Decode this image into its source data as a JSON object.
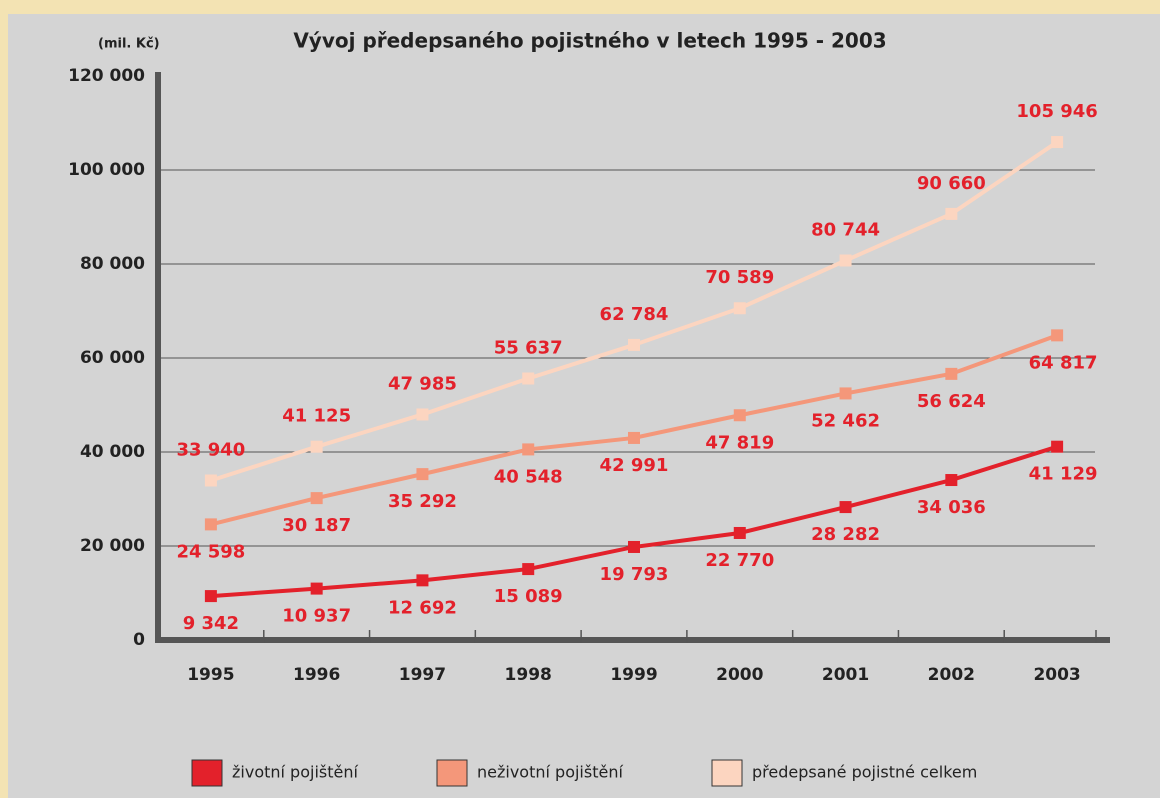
{
  "chart_data": {
    "type": "line",
    "title": "Vývoj předepsaného pojistného v letech 1995 - 2003",
    "unit": "(mil. Kč)",
    "categories": [
      "1995",
      "1996",
      "1997",
      "1998",
      "1999",
      "2000",
      "2001",
      "2002",
      "2003"
    ],
    "series": [
      {
        "name": "životní pojištění",
        "color": "#e3212b",
        "label_pos": "below",
        "values": [
          9342,
          10937,
          12692,
          15089,
          19793,
          22770,
          28282,
          34036,
          41129
        ],
        "value_labels": [
          "9 342",
          "10 937",
          "12 692",
          "15 089",
          "19 793",
          "22 770",
          "28 282",
          "34 036",
          "41 129"
        ]
      },
      {
        "name": "neživotní pojištění",
        "color": "#f4977a",
        "label_pos": "below",
        "values": [
          24598,
          30187,
          35292,
          40548,
          42991,
          47819,
          52462,
          56624,
          64817
        ],
        "value_labels": [
          "24 598",
          "30 187",
          "35 292",
          "40 548",
          "42 991",
          "47 819",
          "52 462",
          "56 624",
          "64 817"
        ]
      },
      {
        "name": "předepsané pojistné celkem",
        "color": "#fcd5c0",
        "label_pos": "above",
        "values": [
          33940,
          41125,
          47985,
          55637,
          62784,
          70589,
          80744,
          90660,
          105946
        ],
        "value_labels": [
          "33 940",
          "41 125",
          "47 985",
          "55 637",
          "62 784",
          "70 589",
          "80 744",
          "90 660",
          "105 946"
        ]
      }
    ],
    "ylim": [
      0,
      120000
    ],
    "yticks": [
      0,
      {
        "value": 20000,
        "label": "20 000"
      },
      {
        "value": 40000,
        "label": "40 000"
      },
      {
        "value": 60000,
        "label": "60 000"
      },
      {
        "value": 80000,
        "label": "80 000"
      },
      {
        "value": 100000,
        "label": "100 000"
      },
      {
        "value": 120000,
        "label": "120 000"
      }
    ],
    "grid": true
  }
}
